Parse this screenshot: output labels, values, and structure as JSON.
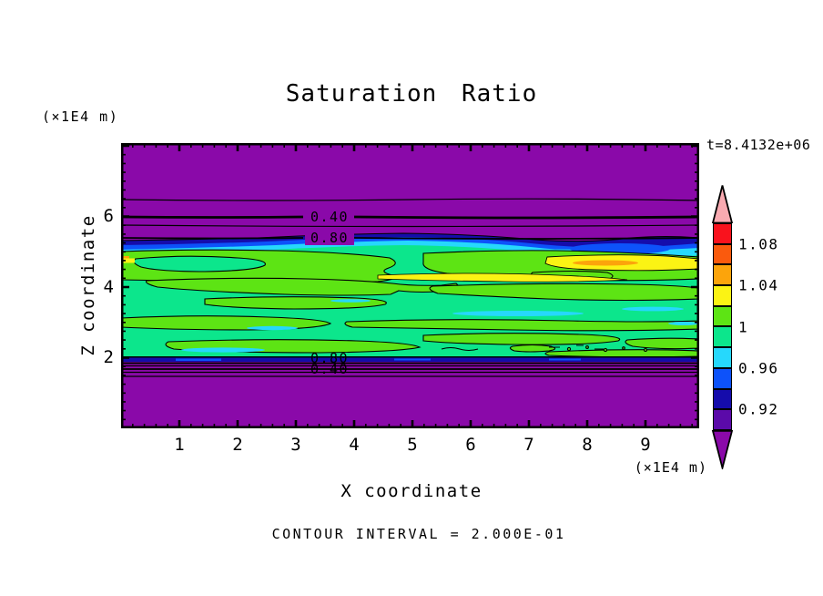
{
  "title": "Saturation Ratio",
  "annotations": {
    "time": "t=8.4132e+06",
    "contour_interval_note": "CONTOUR INTERVAL = 2.000E-01"
  },
  "axes": {
    "x": {
      "label": "X coordinate",
      "unit": "(×1E4 m)",
      "ticks": [
        "1",
        "2",
        "3",
        "4",
        "5",
        "6",
        "7",
        "8",
        "9"
      ]
    },
    "z": {
      "label": "Z coordinate",
      "unit": "(×1E4 m)",
      "ticks": [
        "6",
        "4",
        "2"
      ]
    }
  },
  "plot_labels": {
    "upper_040": "0.40",
    "upper_080": "0.80",
    "lower_080": "0.80",
    "lower_040": "0.40"
  },
  "colorbar": {
    "labels": [
      "1.08",
      "1.04",
      "1",
      "0.96",
      "0.92"
    ],
    "block_colors": [
      "#f9121d",
      "#fa5a0d",
      "#fca40b",
      "#fbf314",
      "#5de414",
      "#0ce68c",
      "#26d8fc",
      "#0d52fa",
      "#150cab",
      "#5b0aa9"
    ],
    "overflow_top_color": "#f9aab1",
    "overflow_bottom_color": "#8a09a9"
  },
  "palette": {
    "purple": "#8a09a9",
    "navy": "#150cab",
    "blue": "#0d52fa",
    "cyan": "#26d8fc",
    "spring": "#0ce68c",
    "lightgreen": "#5de414",
    "yellow": "#fbf314",
    "orange": "#fca40b"
  },
  "chart_data": {
    "type": "heatmap",
    "title": "Saturation Ratio",
    "xlabel": "X coordinate (×1E4 m)",
    "ylabel": "Z coordinate (×1E4 m)",
    "x_range": [
      0,
      9.9
    ],
    "z_range": [
      0,
      8.1
    ],
    "time_annotation": "t=8.4132e+06",
    "contour_interval": 0.2,
    "colorbar_tick_values": [
      1.08,
      1.04,
      1.0,
      0.96,
      0.92
    ],
    "colorbar_bin_width": 0.02,
    "colorbar_value_range": [
      0.9,
      1.1
    ],
    "labeled_contours": [
      {
        "value": 0.4,
        "location": "upper purple zone, z ≈ 5.95"
      },
      {
        "value": 0.8,
        "location": "upper purple zone, z ≈ 5.35"
      },
      {
        "value": 0.8,
        "location": "lower purple zone, z ≈ 1.95"
      },
      {
        "value": 0.4,
        "location": "lower purple zone, z ≈ 1.75"
      }
    ],
    "bands": [
      {
        "z_from": 5.4,
        "z_to": 8.1,
        "saturation": "below 0.2 (under colorbar range)",
        "color_hex": "#8a09a9"
      },
      {
        "z_from": 5.0,
        "z_to": 5.4,
        "saturation": "0.2 to 0.92 steep gradient; contour lines at 0.2, 0.4, 0.6, 0.8; thin navy/blue/cyan fringe at bottom"
      },
      {
        "z_from": 2.0,
        "z_to": 5.0,
        "saturation": "channel ≈ 0.94–1.06; mostly 0.98–1.02 (spring/light green) with cyan streaks 0.96–0.98 and yellow/orange streaks 1.02–1.06 (strongest near z≈4.6 and upper right)"
      },
      {
        "z_from": 1.5,
        "z_to": 2.0,
        "saturation": "0.92 down to 0.2 steep gradient; contour lines at 0.8, 0.6, 0.4, 0.2"
      },
      {
        "z_from": 0.0,
        "z_to": 1.5,
        "saturation": "below 0.2 (under colorbar range)",
        "color_hex": "#8a09a9"
      }
    ]
  }
}
